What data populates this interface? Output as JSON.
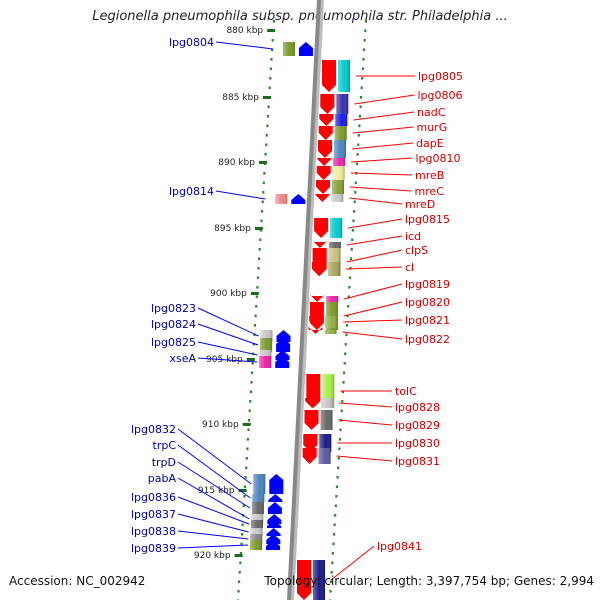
{
  "title": "Legionella pneumophila subsp. pneumophila str. Philadelphia ...",
  "footer": {
    "accession": "Accession: NC_002942",
    "topology": "Topology: circular; Length: 3,397,754 bp; Genes: 2,994"
  },
  "colors": {
    "forward_strand": "#ff0000",
    "reverse_strand": "#0000ff",
    "forward_label": "#cc0000",
    "reverse_label": "#00009a",
    "axis": "#888888",
    "scale_dots": "#2a8a2a"
  },
  "scale_ticks": [
    "880 kbp",
    "885 kbp",
    "890 kbp",
    "895 kbp",
    "900 kbp",
    "905 kbp",
    "910 kbp",
    "915 kbp",
    "920 kbp"
  ],
  "forward_genes": [
    {
      "label": "lpg0805",
      "color": "#00cccc"
    },
    {
      "label": "lpg0806",
      "color": "#3333aa"
    },
    {
      "label": "nadC",
      "color": "#1a1aee"
    },
    {
      "label": "murG",
      "color": "#7a9a2a"
    },
    {
      "label": "dapE",
      "color": "#4a84c0"
    },
    {
      "label": "lpg0810",
      "color": "#ee22aa"
    },
    {
      "label": "mreB",
      "color": "#eeee99"
    },
    {
      "label": "mreC",
      "color": "#8aa03a"
    },
    {
      "label": "mreD",
      "color": "#c8c8c8"
    },
    {
      "label": "lpg0815",
      "color": "#00cccc"
    },
    {
      "label": "icd",
      "color": "#666666"
    },
    {
      "label": "clpS",
      "color": "#c8c080"
    },
    {
      "label": "cl",
      "color": "#a8a860"
    },
    {
      "label": "lpg0819",
      "color": "#ee22aa"
    },
    {
      "label": "lpg0820",
      "color": "#7a9a2a"
    },
    {
      "label": "lpg0821",
      "color": "#90b040"
    },
    {
      "label": "lpg0822",
      "color": "#90b040"
    },
    {
      "label": "tolC",
      "color": "#aaee44"
    },
    {
      "label": "lpg0828",
      "color": "#c8c8c8"
    },
    {
      "label": "lpg0829",
      "color": "#666666"
    },
    {
      "label": "lpg0830",
      "color": "#1a1a88"
    },
    {
      "label": "lpg0831",
      "color": "#5a5aa0"
    },
    {
      "label": "lpg0841",
      "color": "#1a1a88"
    }
  ],
  "reverse_genes": [
    {
      "label": "lpg0804",
      "color": "#7a9a2a"
    },
    {
      "label": "lpg0814",
      "color": "#ee8888"
    },
    {
      "label": "lpg0823",
      "color": "#c8c8c8"
    },
    {
      "label": "lpg0824",
      "color": "#7a9a2a"
    },
    {
      "label": "lpg0825",
      "color": "#c8c8c8"
    },
    {
      "label": "xseA",
      "color": "#ee22aa"
    },
    {
      "label": "lpg0832",
      "color": "#4a84c0"
    },
    {
      "label": "trpC",
      "color": "#4a84c0"
    },
    {
      "label": "trpD",
      "color": "#666666"
    },
    {
      "label": "pabA",
      "color": "#c8c8c8"
    },
    {
      "label": "lpg0836",
      "color": "#666666"
    },
    {
      "label": "lpg0837",
      "color": "#c8c8c8"
    },
    {
      "label": "lpg0838",
      "color": "#888888"
    },
    {
      "label": "lpg0839",
      "color": "#7a9a2a"
    }
  ]
}
